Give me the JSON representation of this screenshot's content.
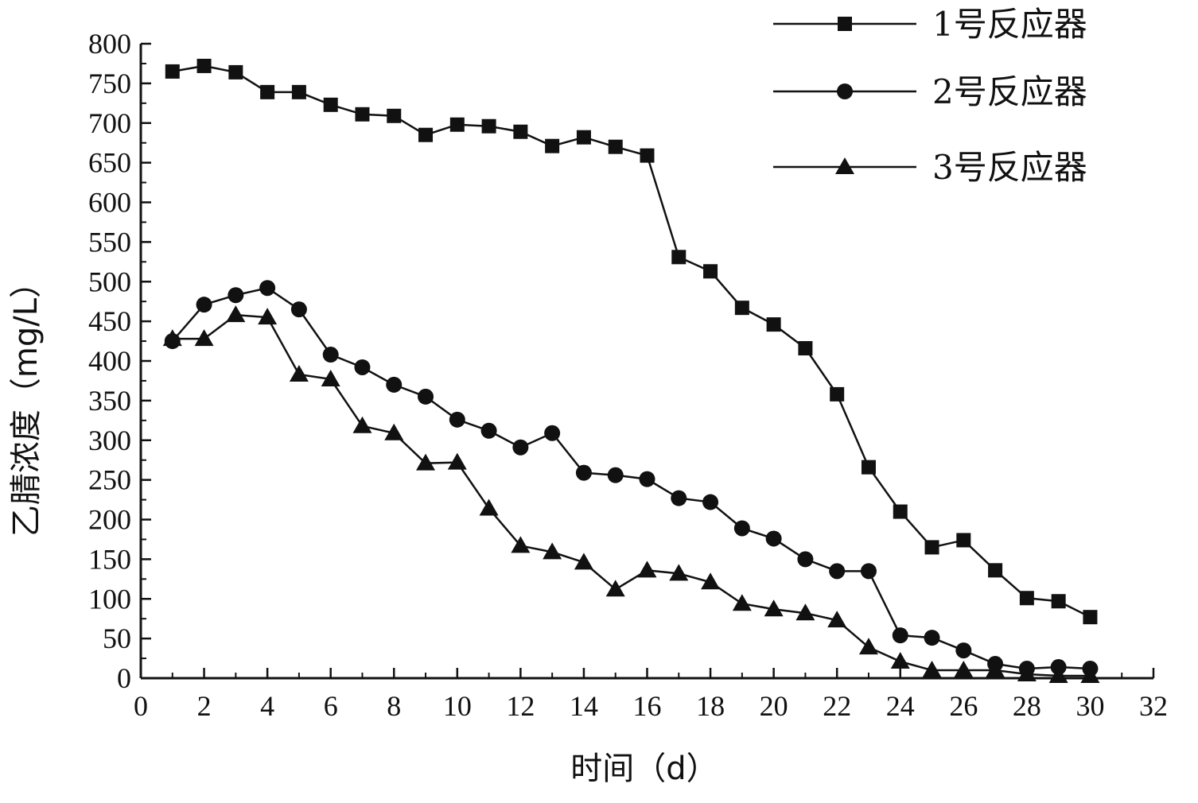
{
  "chart_data": {
    "type": "line",
    "title": "",
    "xlabel": "时间（d）",
    "ylabel": "乙腈浓度（mg/L）",
    "xlim": [
      0,
      32
    ],
    "ylim": [
      0,
      800
    ],
    "xticks": [
      0,
      2,
      4,
      6,
      8,
      10,
      12,
      14,
      16,
      18,
      20,
      22,
      24,
      26,
      28,
      30,
      32
    ],
    "yticks": [
      0,
      50,
      100,
      150,
      200,
      250,
      300,
      350,
      400,
      450,
      500,
      550,
      600,
      650,
      700,
      750,
      800
    ],
    "grid": false,
    "legend_position": "top-right",
    "series": [
      {
        "name": "1号反应器",
        "marker": "square",
        "color": "#111111",
        "x": [
          1,
          2,
          3,
          4,
          5,
          6,
          7,
          8,
          9,
          10,
          11,
          12,
          13,
          14,
          15,
          16,
          17,
          18,
          19,
          20,
          21,
          22,
          23,
          24,
          25,
          26,
          27,
          28,
          29,
          30
        ],
        "y": [
          765,
          772,
          764,
          739,
          739,
          723,
          711,
          709,
          685,
          698,
          696,
          689,
          671,
          682,
          670,
          659,
          531,
          513,
          467,
          446,
          416,
          358,
          266,
          210,
          165,
          174,
          136,
          101,
          97,
          77
        ]
      },
      {
        "name": "2号反应器",
        "marker": "circle",
        "color": "#111111",
        "x": [
          1,
          2,
          3,
          4,
          5,
          6,
          7,
          8,
          9,
          10,
          11,
          12,
          13,
          14,
          15,
          16,
          17,
          18,
          19,
          20,
          21,
          22,
          23,
          24,
          25,
          26,
          27,
          28,
          29,
          30
        ],
        "y": [
          425,
          471,
          483,
          492,
          465,
          408,
          392,
          370,
          355,
          326,
          312,
          291,
          309,
          259,
          256,
          251,
          227,
          222,
          189,
          176,
          150,
          135,
          135,
          54,
          51,
          35,
          18,
          12,
          14,
          12
        ]
      },
      {
        "name": "3号反应器",
        "marker": "triangle",
        "color": "#111111",
        "x": [
          1,
          2,
          3,
          4,
          5,
          6,
          7,
          8,
          9,
          10,
          11,
          12,
          13,
          14,
          15,
          16,
          17,
          18,
          19,
          20,
          21,
          22,
          23,
          24,
          25,
          26,
          27,
          28,
          29,
          30
        ],
        "y": [
          428,
          428,
          458,
          455,
          383,
          377,
          318,
          309,
          271,
          272,
          214,
          167,
          159,
          146,
          112,
          136,
          132,
          121,
          94,
          87,
          82,
          73,
          39,
          21,
          10,
          10,
          10,
          5,
          3,
          3
        ]
      }
    ]
  }
}
